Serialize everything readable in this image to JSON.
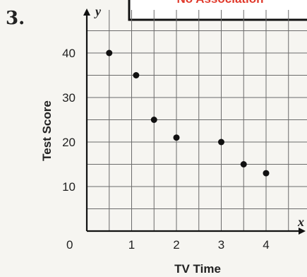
{
  "problem_number": "3.",
  "banner_text": "No Association",
  "chart_data": {
    "type": "scatter",
    "x": [
      0.5,
      1.1,
      1.5,
      2.0,
      3.0,
      3.5,
      4.0
    ],
    "y": [
      40,
      35,
      25,
      21,
      20,
      15,
      13
    ],
    "xlabel": "TV Time",
    "ylabel": "Test Score",
    "x_axis_letter": "x",
    "y_axis_letter": "y",
    "origin_label": "0",
    "xticks": [
      1,
      2,
      3,
      4
    ],
    "yticks": [
      10,
      20,
      30,
      40
    ],
    "xlim": [
      0,
      4.75
    ],
    "ylim": [
      0,
      47
    ],
    "grid": true,
    "point_color": "#111111"
  }
}
